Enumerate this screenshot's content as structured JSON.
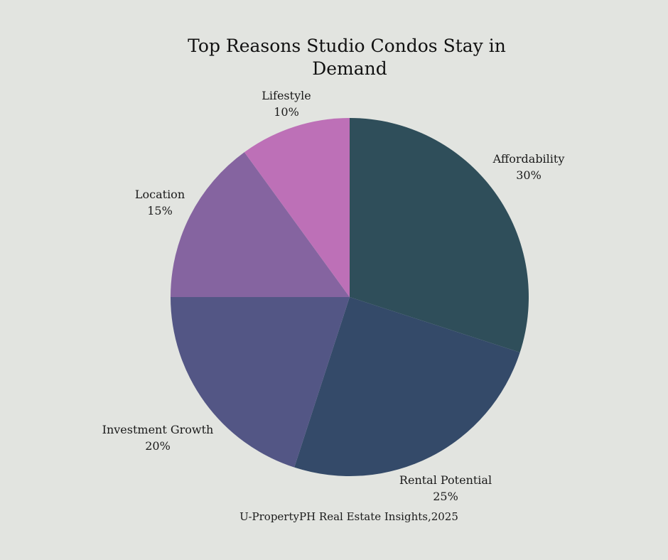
{
  "background": "#e2e4e0",
  "chart_data": {
    "type": "pie",
    "title": "Top Reasons Studio Condos Stay in Demand",
    "title_lines": [
      "Top Reasons Studio Condos Stay in",
      "Demand"
    ],
    "source": "U-PropertyPH Real Estate Insights,2025",
    "start_direction": "top (12 o'clock), clockwise",
    "slices": [
      {
        "label": "Affordability",
        "value": 30,
        "value_label": "30%",
        "color": "#2f4e5a"
      },
      {
        "label": "Rental Potential",
        "value": 25,
        "value_label": "25%",
        "color": "#344a69"
      },
      {
        "label": "Investment Growth",
        "value": 20,
        "value_label": "20%",
        "color": "#535685"
      },
      {
        "label": "Location",
        "value": 15,
        "value_label": "15%",
        "color": "#8564a0"
      },
      {
        "label": "Lifestyle",
        "value": 10,
        "value_label": "10%",
        "color": "#bd70b7"
      }
    ]
  }
}
